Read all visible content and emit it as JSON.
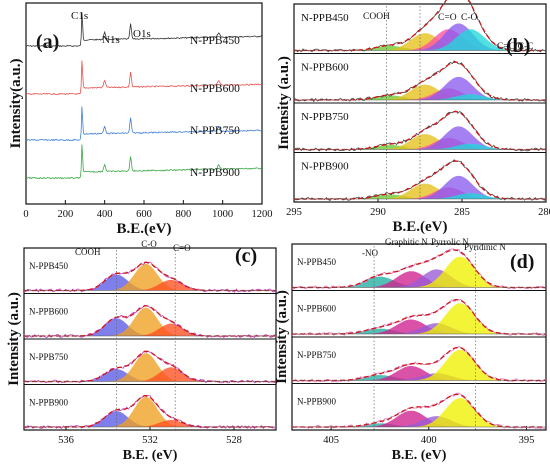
{
  "chart_data": [
    {
      "type": "line",
      "panel_label": "(a)",
      "xlabel": "B.E.(eV)",
      "ylabel": "Intensity(a.u.)",
      "xlim": [
        0,
        1200
      ],
      "x_ticks": [
        "0",
        "200",
        "400",
        "600",
        "800",
        "1000",
        "1200"
      ],
      "peak_labels": [
        {
          "text": "C1s",
          "x": 284.8
        },
        {
          "text": "N1s",
          "x": 400
        },
        {
          "text": "O1s",
          "x": 532
        }
      ],
      "series": [
        {
          "name": "N-PPB450",
          "color": "#333333"
        },
        {
          "name": "N-PPB600",
          "color": "#e8504a"
        },
        {
          "name": "N-PPB750",
          "color": "#3f7fd8"
        },
        {
          "name": "N-PPB900",
          "color": "#3aa845"
        }
      ]
    },
    {
      "type": "area",
      "panel_label": "(b)",
      "xlabel": "B.E.(eV)",
      "ylabel": "Intensity (a.u.)",
      "xlim": [
        295,
        280
      ],
      "x_ticks": [
        "295",
        "290",
        "285",
        "280"
      ],
      "peak_labels": [
        {
          "text": "COOH",
          "x": 289.5
        },
        {
          "text": "C=O",
          "x": 287.5
        },
        {
          "text": "C-O",
          "x": 286.3
        },
        {
          "text": "C=C/C-C",
          "x": 284.3
        }
      ],
      "components": [
        {
          "label": "COOH",
          "center": 289.3,
          "color": "#66cc33"
        },
        {
          "label": "C=O",
          "center": 287.2,
          "color": "#e6c21a"
        },
        {
          "label": "C-O",
          "center": 285.8,
          "color": "#ff4fa0"
        },
        {
          "label": "C-O",
          "center": 285.2,
          "color": "#8a5cf0"
        },
        {
          "label": "C=C/C-C",
          "center": 284.5,
          "color": "#20d8d8"
        }
      ],
      "series": [
        {
          "name": "N-PPB450",
          "amplitudes": [
            0.12,
            0.45,
            0.55,
            0.7,
            0.55
          ]
        },
        {
          "name": "N-PPB600",
          "amplitudes": [
            0.12,
            0.4,
            0.3,
            0.6,
            0.15
          ]
        },
        {
          "name": "N-PPB750",
          "amplitudes": [
            0.12,
            0.4,
            0.3,
            0.6,
            0.15
          ]
        },
        {
          "name": "N-PPB900",
          "amplitudes": [
            0.12,
            0.4,
            0.3,
            0.6,
            0.15
          ]
        }
      ]
    },
    {
      "type": "area",
      "panel_label": "(c)",
      "xlabel": "B.E. (eV)",
      "ylabel": "Intensity (a.u.)",
      "xlim": [
        538,
        526
      ],
      "x_ticks": [
        "536",
        "532",
        "528"
      ],
      "peak_labels": [
        {
          "text": "COOH",
          "x": 533.6
        },
        {
          "text": "C-O",
          "x": 531.8
        },
        {
          "text": "C=O",
          "x": 530.8
        }
      ],
      "components": [
        {
          "label": "COOH",
          "center": 533.6,
          "color": "#5b5be6"
        },
        {
          "label": "C-O",
          "center": 532.2,
          "color": "#f0a020"
        },
        {
          "label": "C=O",
          "center": 531.0,
          "color": "#ff5020"
        }
      ],
      "series": [
        {
          "name": "N-PPB450",
          "amplitudes": [
            0.45,
            0.75,
            0.3
          ]
        },
        {
          "name": "N-PPB600",
          "amplitudes": [
            0.5,
            0.8,
            0.35
          ]
        },
        {
          "name": "N-PPB750",
          "amplitudes": [
            0.35,
            0.8,
            0.4
          ]
        },
        {
          "name": "N-PPB900",
          "amplitudes": [
            0.45,
            0.85,
            0.2
          ]
        }
      ]
    },
    {
      "type": "area",
      "panel_label": "(d)",
      "xlabel": "B.E. (eV)",
      "ylabel": "Intensity (a.u.)",
      "xlim": [
        407,
        394
      ],
      "x_ticks": [
        "405",
        "400",
        "395"
      ],
      "peak_labels": [
        {
          "text": "-NO",
          "x": 402.8
        },
        {
          "text": "Graphitic N",
          "x": 401.1
        },
        {
          "text": "Pyrrolic N",
          "x": 400.0
        },
        {
          "text": "Pyridinic N",
          "x": 397.6
        }
      ],
      "components": [
        {
          "label": "-NOx",
          "center": 402.5,
          "color": "#20b0a0"
        },
        {
          "label": "Graphitic N",
          "center": 400.9,
          "color": "#d02090"
        },
        {
          "label": "Pyrrolic N",
          "center": 399.6,
          "color": "#9a5ad6"
        },
        {
          "label": "Pyridinic N",
          "center": 398.4,
          "color": "#f0f000"
        }
      ],
      "series": [
        {
          "name": "N-PPB450",
          "amplitudes": [
            0.3,
            0.45,
            0.5,
            0.85
          ]
        },
        {
          "name": "N-PPB600",
          "amplitudes": [
            0.15,
            0.4,
            0.3,
            0.85
          ]
        },
        {
          "name": "N-PPB750",
          "amplitudes": [
            0.15,
            0.4,
            0.2,
            0.85
          ]
        },
        {
          "name": "N-PPB900",
          "amplitudes": [
            0.1,
            0.45,
            0.3,
            0.8
          ]
        }
      ]
    }
  ]
}
